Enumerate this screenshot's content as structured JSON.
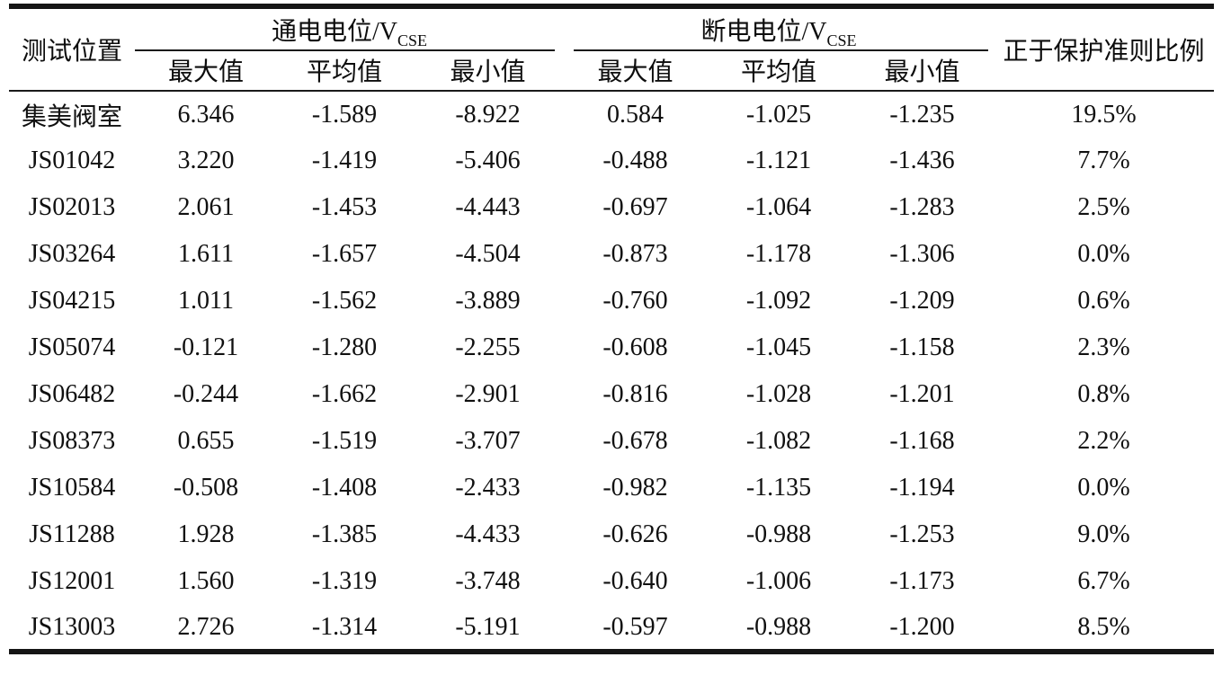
{
  "table": {
    "corner_header": "测试位置",
    "group_headers": [
      {
        "prefix": "通电电位/V",
        "subscript": "CSE"
      },
      {
        "prefix": "断电电位/V",
        "subscript": "CSE"
      }
    ],
    "sub_headers": [
      "最大值",
      "平均值",
      "最小值",
      "最大值",
      "平均值",
      "最小值"
    ],
    "ratio_header": "正于保护准则比例",
    "rows": [
      [
        "集美阀室",
        "6.346",
        "-1.589",
        "-8.922",
        "0.584",
        "-1.025",
        "-1.235",
        "19.5%"
      ],
      [
        "JS01042",
        "3.220",
        "-1.419",
        "-5.406",
        "-0.488",
        "-1.121",
        "-1.436",
        "7.7%"
      ],
      [
        "JS02013",
        "2.061",
        "-1.453",
        "-4.443",
        "-0.697",
        "-1.064",
        "-1.283",
        "2.5%"
      ],
      [
        "JS03264",
        "1.611",
        "-1.657",
        "-4.504",
        "-0.873",
        "-1.178",
        "-1.306",
        "0.0%"
      ],
      [
        "JS04215",
        "1.011",
        "-1.562",
        "-3.889",
        "-0.760",
        "-1.092",
        "-1.209",
        "0.6%"
      ],
      [
        "JS05074",
        "-0.121",
        "-1.280",
        "-2.255",
        "-0.608",
        "-1.045",
        "-1.158",
        "2.3%"
      ],
      [
        "JS06482",
        "-0.244",
        "-1.662",
        "-2.901",
        "-0.816",
        "-1.028",
        "-1.201",
        "0.8%"
      ],
      [
        "JS08373",
        "0.655",
        "-1.519",
        "-3.707",
        "-0.678",
        "-1.082",
        "-1.168",
        "2.2%"
      ],
      [
        "JS10584",
        "-0.508",
        "-1.408",
        "-2.433",
        "-0.982",
        "-1.135",
        "-1.194",
        "0.0%"
      ],
      [
        "JS11288",
        "1.928",
        "-1.385",
        "-4.433",
        "-0.626",
        "-0.988",
        "-1.253",
        "9.0%"
      ],
      [
        "JS12001",
        "1.560",
        "-1.319",
        "-3.748",
        "-0.640",
        "-1.006",
        "-1.173",
        "6.7%"
      ],
      [
        "JS13003",
        "2.726",
        "-1.314",
        "-5.191",
        "-0.597",
        "-0.988",
        "-1.200",
        "8.5%"
      ]
    ]
  }
}
